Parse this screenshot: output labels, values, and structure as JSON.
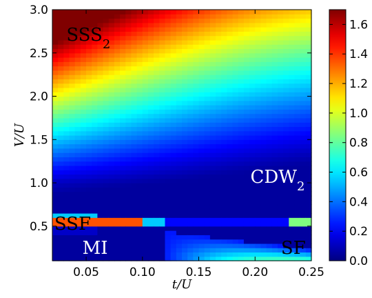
{
  "chart_data": {
    "type": "heatmap",
    "title": "",
    "xlabel": "t/U",
    "ylabel": "V/U",
    "xlim": [
      0.02,
      0.25
    ],
    "ylim": [
      0.1,
      3.0
    ],
    "x_ticks": [
      "0.05",
      "0.10",
      "0.15",
      "0.20",
      "0.25"
    ],
    "y_ticks": [
      "0.5",
      "1.0",
      "1.5",
      "2.0",
      "2.5",
      "3.0"
    ],
    "colorbar": {
      "colormap": "jet",
      "range": [
        0.0,
        1.7
      ],
      "ticks": [
        "0.0",
        "0.2",
        "0.4",
        "0.6",
        "0.8",
        "1.0",
        "1.2",
        "1.4",
        "1.6"
      ]
    },
    "annotations": [
      {
        "base": "SSS",
        "sub": "2",
        "x": 0.052,
        "y": 2.64,
        "color": "#000000"
      },
      {
        "base": "CDW",
        "sub": "2",
        "x": 0.22,
        "y": 1.0,
        "color": "#ffffff"
      },
      {
        "base": "SSF",
        "sub": "",
        "x": 0.038,
        "y": 0.46,
        "color": "#000000"
      },
      {
        "base": "MI",
        "sub": "",
        "x": 0.058,
        "y": 0.18,
        "color": "#ffffff"
      },
      {
        "base": "SF",
        "sub": "",
        "x": 0.234,
        "y": 0.18,
        "color": "#000000"
      }
    ]
  }
}
